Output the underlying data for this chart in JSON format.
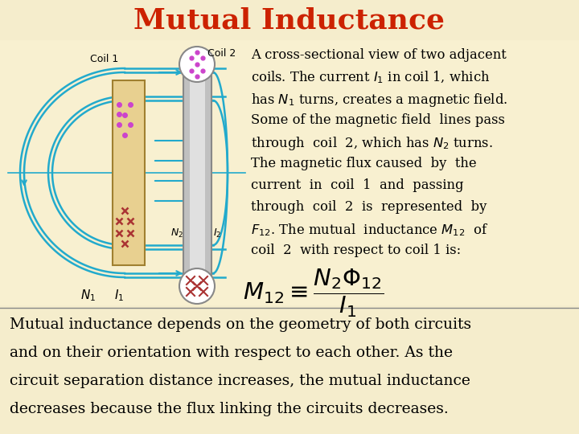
{
  "title": "Mutual Inductance",
  "title_color": "#cc2200",
  "bg_color": "#f5edcc",
  "upper_bg": "#ffffff",
  "description_text": [
    "A cross-sectional view of two adjacent",
    "coils. The current $I_1$ in coil 1, which",
    "has $N_1$ turns, creates a magnetic field.",
    "Some of the magnetic field  lines pass",
    "through  coil  2, which has $N_2$ turns.",
    "The magnetic flux caused  by  the",
    "current  in  coil  1  and  passing",
    "through  coil  2  is  represented  by",
    "$F_{12}$. The mutual  inductance $M_{12}$  of",
    "coil  2  with respect to coil 1 is:"
  ],
  "formula": "$M_{12} \\equiv \\dfrac{N_2\\Phi_{12}}{I_1}$",
  "bottom_text": [
    "Mutual inductance depends on the geometry of both circuits",
    "and on their orientation with respect to each other. As the",
    "circuit separation distance increases, the mutual inductance",
    "decreases because the flux linking the circuits decreases."
  ],
  "coil1_color": "#e8d090",
  "coil2_color": "#aaaaaa",
  "flux_color": "#22aacc",
  "dot_color": "#cc44cc",
  "cross_color": "#aa3333"
}
